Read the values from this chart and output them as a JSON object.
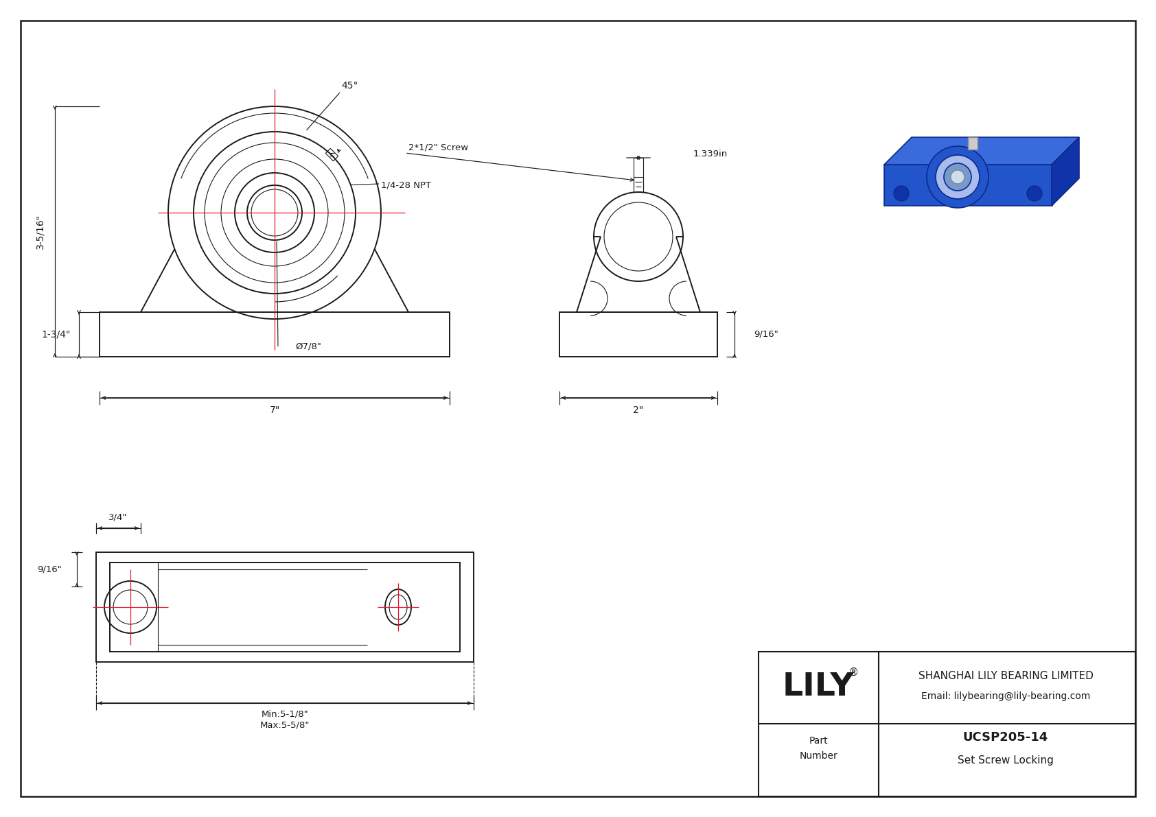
{
  "bg_color": "#ffffff",
  "lc": "#1a1a1a",
  "rc": "#e8192c",
  "title_company": "SHANGHAI LILY BEARING LIMITED",
  "title_email": "Email: lilybearing@lily-bearing.com",
  "part_number": "UCSP205-14",
  "part_type": "Set Screw Locking",
  "brand": "LILY",
  "brand_reg": "®",
  "part_label_1": "Part",
  "part_label_2": "Number",
  "dim_45": "45°",
  "dim_npt": "1/4-28 NPT",
  "dim_screw": "2*1/2\" Screw",
  "dim_1339": "1.339in",
  "dim_phi78": "Ø7/8\"",
  "dim_7": "7\"",
  "dim_916_right": "9/16\"",
  "dim_2": "2\"",
  "dim_3516": "3-5/16\"",
  "dim_134": "1-3/4\"",
  "dim_34": "3/4\"",
  "dim_916_bot": "9/16\"",
  "dim_min": "Min:5-1/8\"",
  "dim_max": "Max:5-5/8\""
}
